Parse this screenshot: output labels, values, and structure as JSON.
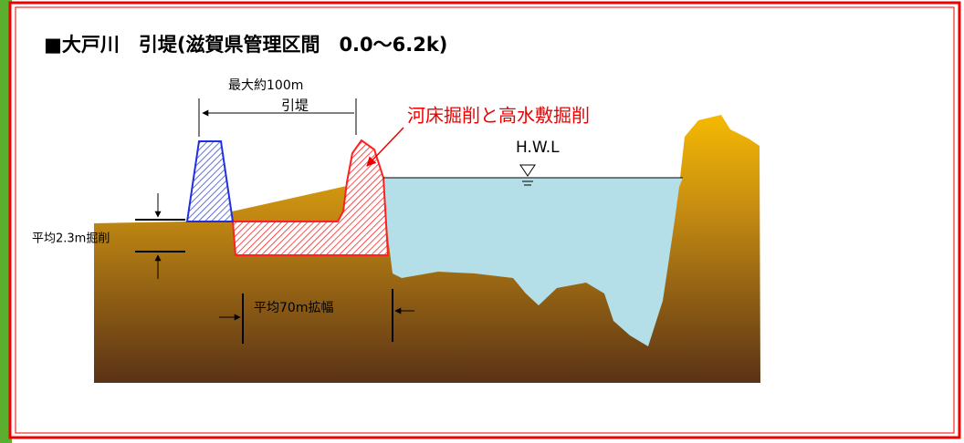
{
  "title": "■大戸川　引堤(滋賀県管理区間　0.0～6.2k)",
  "annotations": {
    "max_width": "最大約100m",
    "setback": "引堤",
    "excavation": "河床掘削と高水敷掘削",
    "hwl": "H.W.L",
    "avg_depth": "平均2.3m掘削",
    "avg_widen": "平均70m拡幅"
  }
}
